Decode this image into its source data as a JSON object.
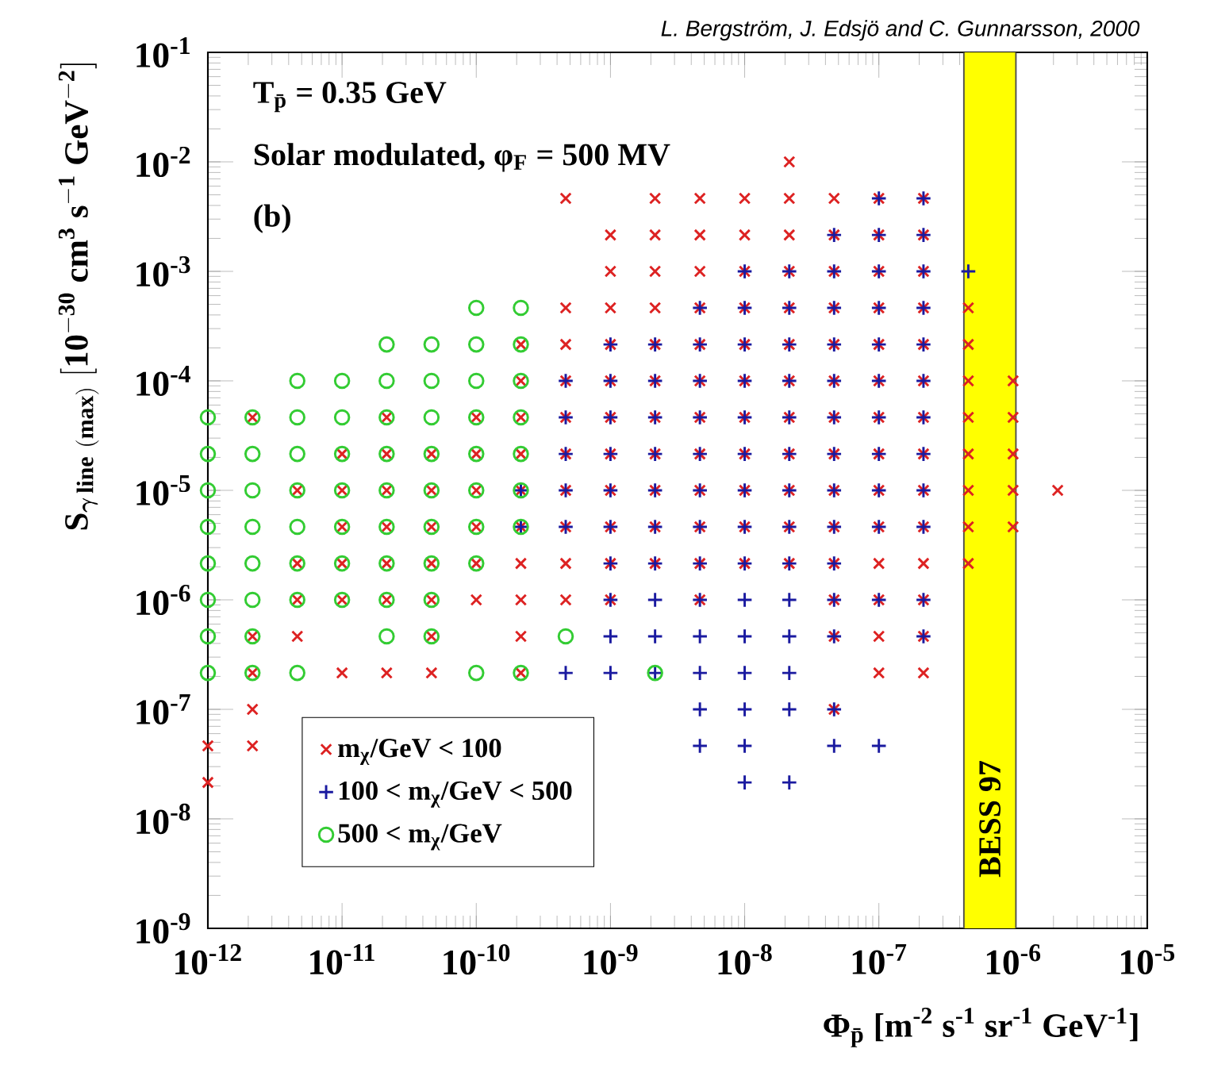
{
  "chart_data": {
    "type": "scatter",
    "log": "xy",
    "legend": "bottom left",
    "xlabel": "Φ$_{p̄}$ [m$^{-2}$ s$^{-1}$ sr$^{-1}$ GeV$^{-1}$]",
    "ylabel": "\\mathbf{S}_{\\boldsymbol{\\gamma}\\,\\mathbf{line\\ (max)}}\\ \\mathbf{[10^{-30}\\ cm^{3}\\ s^{-1}\\ GeV^{-2}]}",
    "annotations": [
      "L. Bergström, J. Edsjö and C. Gunnarsson, 2000",
      "T$_{p̄}$ = 0.35 GeV",
      "Solar modulated, φ$_{F}$ = 500 MV",
      "(b)"
    ],
    "xlim": [
      1e-12,
      1e-05
    ],
    "ylim": [
      1e-09,
      0.1
    ],
    "xticks": [
      {
        "value": 1e-12,
        "label": "10$^{-12}$"
      },
      {
        "value": 1e-11,
        "label": "10$^{-11}$"
      },
      {
        "value": 1e-10,
        "label": "10$^{-10}$"
      },
      {
        "value": 1e-09,
        "label": "10$^{-9}$"
      },
      {
        "value": 1e-08,
        "label": "10$^{-8}$"
      },
      {
        "value": 1e-07,
        "label": "10$^{-7}$"
      },
      {
        "value": 1e-06,
        "label": "10$^{-6}$"
      },
      {
        "value": 1e-05,
        "label": "10$^{-5}$"
      }
    ],
    "yticks": [
      {
        "value": 1e-09,
        "label": "10$^{-9}$"
      },
      {
        "value": 1e-08,
        "label": "10$^{-8}$"
      },
      {
        "value": 1e-07,
        "label": "10$^{-7}$"
      },
      {
        "value": 1e-06,
        "label": "10$^{-6}$"
      },
      {
        "value": 1e-05,
        "label": "10$^{-5}$"
      },
      {
        "value": 0.0001,
        "label": "10$^{-4}$"
      },
      {
        "value": 0.001,
        "label": "10$^{-3}$"
      },
      {
        "value": 0.01,
        "label": "10$^{-2}$"
      },
      {
        "value": 0.1,
        "label": "10$^{-1}$"
      }
    ],
    "bands": [
      {
        "axis": "x",
        "from": 4.3e-07,
        "to": 1.05e-06,
        "label": "BESS 97",
        "color": "#ffff00"
      }
    ],
    "series": [
      {
        "name": "m$_{χ}$/GeV < 100",
        "color": "#dd2222",
        "marker": "cross",
        "x": [
          2.15e-08,
          4.64e-10,
          2.15e-09,
          4.64e-09,
          1e-08,
          2.15e-08,
          4.64e-08,
          1e-07,
          2.15e-07,
          1e-09,
          2.15e-09,
          4.64e-09,
          1e-08,
          2.15e-08,
          4.64e-08,
          1e-07,
          2.15e-07,
          1e-09,
          2.15e-09,
          4.64e-09,
          1e-08,
          2.15e-08,
          4.64e-08,
          1e-07,
          2.15e-07,
          4.64e-10,
          1e-09,
          2.15e-09,
          4.64e-09,
          1e-08,
          2.15e-08,
          4.64e-08,
          1e-07,
          2.15e-07,
          4.64e-07,
          2.15e-10,
          4.64e-10,
          1e-09,
          2.15e-09,
          4.64e-09,
          1e-08,
          2.15e-08,
          4.64e-08,
          1e-07,
          2.15e-07,
          4.64e-07,
          2.15e-10,
          4.64e-10,
          1e-09,
          2.15e-09,
          4.64e-09,
          1e-08,
          2.15e-08,
          4.64e-08,
          1e-07,
          2.15e-07,
          4.64e-07,
          1e-06,
          2.15e-12,
          2.15e-11,
          1e-10,
          2.15e-10,
          4.64e-10,
          1e-09,
          2.15e-09,
          4.64e-09,
          1e-08,
          2.15e-08,
          4.64e-08,
          1e-07,
          2.15e-07,
          4.64e-07,
          1e-06,
          1e-11,
          2.15e-11,
          4.64e-11,
          1e-10,
          2.15e-10,
          4.64e-10,
          1e-09,
          2.15e-09,
          4.64e-09,
          1e-08,
          2.15e-08,
          4.64e-08,
          1e-07,
          2.15e-07,
          4.64e-07,
          1e-06,
          4.64e-12,
          1e-11,
          2.15e-11,
          4.64e-11,
          1e-10,
          2.15e-10,
          4.64e-10,
          1e-09,
          2.15e-09,
          4.64e-09,
          1e-08,
          2.15e-08,
          4.64e-08,
          1e-07,
          2.15e-07,
          4.64e-07,
          1e-06,
          2.15e-06,
          1e-11,
          2.15e-11,
          4.64e-11,
          1e-10,
          2.15e-10,
          4.64e-10,
          1e-09,
          2.15e-09,
          4.64e-09,
          1e-08,
          2.15e-08,
          4.64e-08,
          1e-07,
          2.15e-07,
          4.64e-07,
          1e-06,
          4.64e-12,
          1e-11,
          2.15e-11,
          4.64e-11,
          1e-10,
          2.15e-10,
          4.64e-10,
          1e-09,
          2.15e-09,
          4.64e-09,
          1e-08,
          2.15e-08,
          4.64e-08,
          1e-07,
          2.15e-07,
          4.64e-07,
          4.64e-12,
          1e-11,
          2.15e-11,
          4.64e-11,
          1e-10,
          2.15e-10,
          4.64e-10,
          1e-09,
          4.64e-09,
          4.64e-08,
          1e-07,
          2.15e-07,
          2.15e-12,
          4.64e-12,
          4.64e-11,
          2.15e-10,
          4.64e-08,
          1e-07,
          2.15e-07,
          2.15e-12,
          1e-11,
          2.15e-11,
          4.64e-11,
          2.15e-10,
          1e-07,
          2.15e-07,
          2.15e-12,
          4.64e-08,
          1e-12,
          2.15e-12,
          1e-12
        ],
        "values": [
          0.01,
          0.00464,
          0.00464,
          0.00464,
          0.00464,
          0.00464,
          0.00464,
          0.00464,
          0.00464,
          0.00215,
          0.00215,
          0.00215,
          0.00215,
          0.00215,
          0.00215,
          0.00215,
          0.00215,
          0.001,
          0.001,
          0.001,
          0.001,
          0.001,
          0.001,
          0.001,
          0.001,
          0.000464,
          0.000464,
          0.000464,
          0.000464,
          0.000464,
          0.000464,
          0.000464,
          0.000464,
          0.000464,
          0.000464,
          0.000215,
          0.000215,
          0.000215,
          0.000215,
          0.000215,
          0.000215,
          0.000215,
          0.000215,
          0.000215,
          0.000215,
          0.000215,
          0.0001,
          0.0001,
          0.0001,
          0.0001,
          0.0001,
          0.0001,
          0.0001,
          0.0001,
          0.0001,
          0.0001,
          0.0001,
          0.0001,
          4.64e-05,
          4.64e-05,
          4.64e-05,
          4.64e-05,
          4.64e-05,
          4.64e-05,
          4.64e-05,
          4.64e-05,
          4.64e-05,
          4.64e-05,
          4.64e-05,
          4.64e-05,
          4.64e-05,
          4.64e-05,
          4.64e-05,
          2.15e-05,
          2.15e-05,
          2.15e-05,
          2.15e-05,
          2.15e-05,
          2.15e-05,
          2.15e-05,
          2.15e-05,
          2.15e-05,
          2.15e-05,
          2.15e-05,
          2.15e-05,
          2.15e-05,
          2.15e-05,
          2.15e-05,
          2.15e-05,
          1e-05,
          1e-05,
          1e-05,
          1e-05,
          1e-05,
          1e-05,
          1e-05,
          1e-05,
          1e-05,
          1e-05,
          1e-05,
          1e-05,
          1e-05,
          1e-05,
          1e-05,
          1e-05,
          1e-05,
          1e-05,
          4.64e-06,
          4.64e-06,
          4.64e-06,
          4.64e-06,
          4.64e-06,
          4.64e-06,
          4.64e-06,
          4.64e-06,
          4.64e-06,
          4.64e-06,
          4.64e-06,
          4.64e-06,
          4.64e-06,
          4.64e-06,
          4.64e-06,
          4.64e-06,
          2.15e-06,
          2.15e-06,
          2.15e-06,
          2.15e-06,
          2.15e-06,
          2.15e-06,
          2.15e-06,
          2.15e-06,
          2.15e-06,
          2.15e-06,
          2.15e-06,
          2.15e-06,
          2.15e-06,
          2.15e-06,
          2.15e-06,
          2.15e-06,
          1e-06,
          1e-06,
          1e-06,
          1e-06,
          1e-06,
          1e-06,
          1e-06,
          1e-06,
          1e-06,
          1e-06,
          1e-06,
          1e-06,
          4.64e-07,
          4.64e-07,
          4.64e-07,
          4.64e-07,
          4.64e-07,
          4.64e-07,
          4.64e-07,
          2.15e-07,
          2.15e-07,
          2.15e-07,
          2.15e-07,
          2.15e-07,
          2.15e-07,
          2.15e-07,
          1e-07,
          1e-07,
          4.64e-08,
          4.64e-08,
          2.15e-08
        ]
      },
      {
        "name": "100 < m$_{χ}$/GeV < 500",
        "color": "#1a1aa0",
        "marker": "plus",
        "x": [
          1e-07,
          2.15e-07,
          4.64e-08,
          1e-07,
          2.15e-07,
          1e-08,
          2.15e-08,
          4.64e-08,
          1e-07,
          2.15e-07,
          4.64e-07,
          4.64e-09,
          1e-08,
          2.15e-08,
          4.64e-08,
          1e-07,
          2.15e-07,
          1e-09,
          2.15e-09,
          4.64e-09,
          1e-08,
          2.15e-08,
          4.64e-08,
          1e-07,
          2.15e-07,
          4.64e-10,
          1e-09,
          2.15e-09,
          4.64e-09,
          1e-08,
          2.15e-08,
          4.64e-08,
          1e-07,
          2.15e-07,
          4.64e-10,
          1e-09,
          2.15e-09,
          4.64e-09,
          1e-08,
          2.15e-08,
          4.64e-08,
          1e-07,
          2.15e-07,
          4.64e-10,
          1e-09,
          2.15e-09,
          4.64e-09,
          1e-08,
          2.15e-08,
          4.64e-08,
          1e-07,
          2.15e-07,
          2.15e-10,
          4.64e-10,
          1e-09,
          2.15e-09,
          4.64e-09,
          1e-08,
          2.15e-08,
          4.64e-08,
          1e-07,
          2.15e-07,
          2.15e-10,
          4.64e-10,
          1e-09,
          2.15e-09,
          4.64e-09,
          1e-08,
          2.15e-08,
          4.64e-08,
          1e-07,
          2.15e-07,
          1e-09,
          2.15e-09,
          4.64e-09,
          1e-08,
          2.15e-08,
          4.64e-08,
          1e-09,
          2.15e-09,
          4.64e-09,
          1e-08,
          2.15e-08,
          4.64e-08,
          1e-07,
          2.15e-07,
          1e-09,
          2.15e-09,
          4.64e-09,
          1e-08,
          2.15e-08,
          4.64e-08,
          2.15e-07,
          4.64e-10,
          1e-09,
          2.15e-09,
          4.64e-09,
          1e-08,
          2.15e-08,
          4.64e-09,
          1e-08,
          2.15e-08,
          4.64e-08,
          4.64e-09,
          1e-08,
          4.64e-08,
          1e-07,
          1e-08,
          2.15e-08
        ],
        "values": [
          0.00464,
          0.00464,
          0.00215,
          0.00215,
          0.00215,
          0.001,
          0.001,
          0.001,
          0.001,
          0.001,
          0.001,
          0.000464,
          0.000464,
          0.000464,
          0.000464,
          0.000464,
          0.000464,
          0.000215,
          0.000215,
          0.000215,
          0.000215,
          0.000215,
          0.000215,
          0.000215,
          0.000215,
          0.0001,
          0.0001,
          0.0001,
          0.0001,
          0.0001,
          0.0001,
          0.0001,
          0.0001,
          0.0001,
          4.64e-05,
          4.64e-05,
          4.64e-05,
          4.64e-05,
          4.64e-05,
          4.64e-05,
          4.64e-05,
          4.64e-05,
          4.64e-05,
          2.15e-05,
          2.15e-05,
          2.15e-05,
          2.15e-05,
          2.15e-05,
          2.15e-05,
          2.15e-05,
          2.15e-05,
          2.15e-05,
          1e-05,
          1e-05,
          1e-05,
          1e-05,
          1e-05,
          1e-05,
          1e-05,
          1e-05,
          1e-05,
          1e-05,
          4.64e-06,
          4.64e-06,
          4.64e-06,
          4.64e-06,
          4.64e-06,
          4.64e-06,
          4.64e-06,
          4.64e-06,
          4.64e-06,
          4.64e-06,
          2.15e-06,
          2.15e-06,
          2.15e-06,
          2.15e-06,
          2.15e-06,
          2.15e-06,
          1e-06,
          1e-06,
          1e-06,
          1e-06,
          1e-06,
          1e-06,
          1e-06,
          1e-06,
          4.64e-07,
          4.64e-07,
          4.64e-07,
          4.64e-07,
          4.64e-07,
          4.64e-07,
          4.64e-07,
          2.15e-07,
          2.15e-07,
          2.15e-07,
          2.15e-07,
          2.15e-07,
          2.15e-07,
          1e-07,
          1e-07,
          1e-07,
          1e-07,
          4.64e-08,
          4.64e-08,
          4.64e-08,
          4.64e-08,
          2.15e-08,
          2.15e-08
        ]
      },
      {
        "name": "500 < m$_{χ}$/GeV",
        "color": "#33cc33",
        "marker": "circle",
        "x": [
          1e-10,
          2.15e-10,
          2.15e-11,
          4.64e-11,
          1e-10,
          2.15e-10,
          4.64e-12,
          1e-11,
          2.15e-11,
          4.64e-11,
          1e-10,
          2.15e-10,
          1e-12,
          2.15e-12,
          4.64e-12,
          1e-11,
          2.15e-11,
          4.64e-11,
          1e-10,
          2.15e-10,
          1e-12,
          2.15e-12,
          4.64e-12,
          1e-11,
          2.15e-11,
          4.64e-11,
          1e-10,
          2.15e-10,
          1e-12,
          2.15e-12,
          4.64e-12,
          1e-11,
          2.15e-11,
          4.64e-11,
          1e-10,
          2.15e-10,
          1e-12,
          2.15e-12,
          4.64e-12,
          1e-11,
          2.15e-11,
          4.64e-11,
          1e-10,
          2.15e-10,
          1e-12,
          2.15e-12,
          4.64e-12,
          1e-11,
          2.15e-11,
          4.64e-11,
          1e-10,
          1e-12,
          2.15e-12,
          4.64e-12,
          1e-11,
          2.15e-11,
          4.64e-11,
          1e-12,
          2.15e-12,
          2.15e-11,
          4.64e-11,
          4.64e-10,
          1e-12,
          2.15e-12,
          4.64e-12,
          1e-10,
          2.15e-10,
          2.15e-09
        ],
        "values": [
          0.000464,
          0.000464,
          0.000215,
          0.000215,
          0.000215,
          0.000215,
          0.0001,
          0.0001,
          0.0001,
          0.0001,
          0.0001,
          0.0001,
          4.64e-05,
          4.64e-05,
          4.64e-05,
          4.64e-05,
          4.64e-05,
          4.64e-05,
          4.64e-05,
          4.64e-05,
          2.15e-05,
          2.15e-05,
          2.15e-05,
          2.15e-05,
          2.15e-05,
          2.15e-05,
          2.15e-05,
          2.15e-05,
          1e-05,
          1e-05,
          1e-05,
          1e-05,
          1e-05,
          1e-05,
          1e-05,
          1e-05,
          4.64e-06,
          4.64e-06,
          4.64e-06,
          4.64e-06,
          4.64e-06,
          4.64e-06,
          4.64e-06,
          4.64e-06,
          2.15e-06,
          2.15e-06,
          2.15e-06,
          2.15e-06,
          2.15e-06,
          2.15e-06,
          2.15e-06,
          1e-06,
          1e-06,
          1e-06,
          1e-06,
          1e-06,
          1e-06,
          4.64e-07,
          4.64e-07,
          4.64e-07,
          4.64e-07,
          4.64e-07,
          2.15e-07,
          2.15e-07,
          2.15e-07,
          2.15e-07,
          2.15e-07,
          2.15e-07
        ]
      }
    ]
  }
}
